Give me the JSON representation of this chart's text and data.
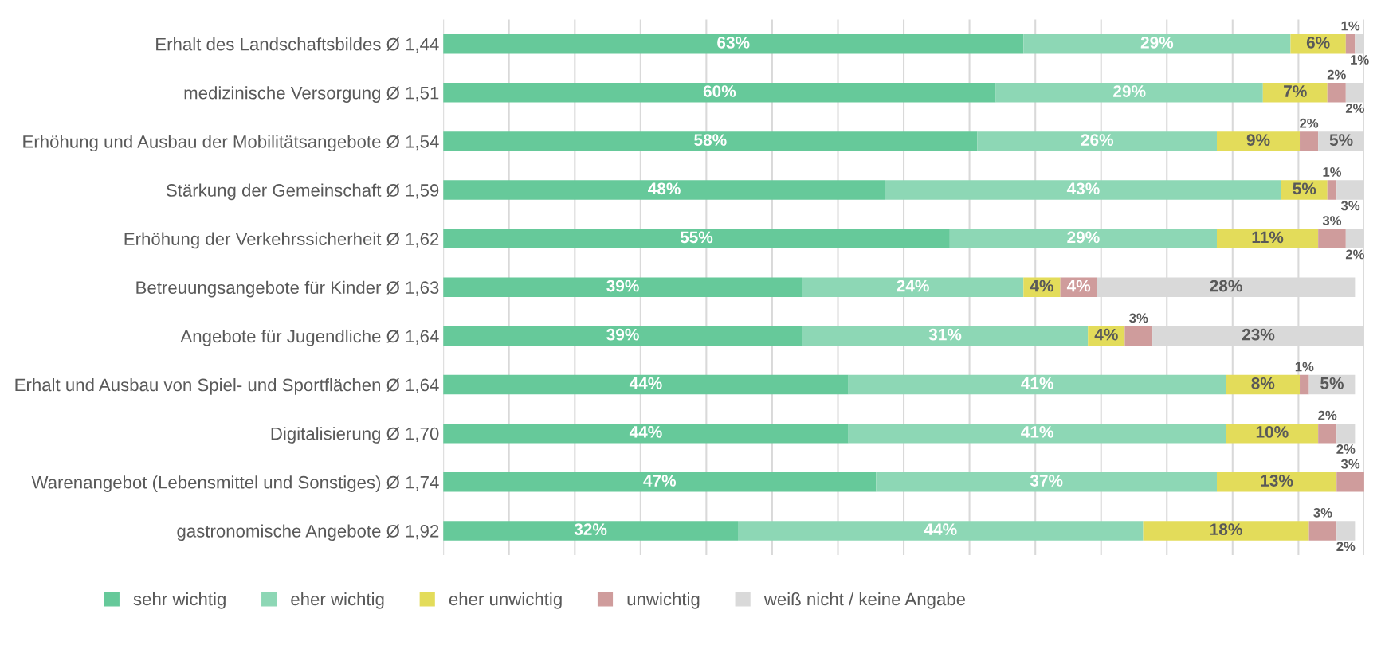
{
  "chart_data": {
    "type": "bar",
    "orientation": "horizontal",
    "stacked": true,
    "categories": [
      "Erhalt des Landschaftsbildes Ø 1,44",
      "medizinische Versorgung Ø 1,51",
      "Erhöhung und Ausbau der Mobilitätsangebote Ø 1,54",
      "Stärkung der Gemeinschaft Ø 1,59",
      "Erhöhung der Verkehrssicherheit Ø 1,62",
      "Betreuungsangebote für Kinder Ø 1,63",
      "Angebote für Jugendliche Ø 1,64",
      "Erhalt und Ausbau von Spiel- und Sportflächen Ø 1,64",
      "Digitalisierung Ø 1,70",
      "Warenangebot (Lebensmittel und Sonstiges) Ø 1,74",
      "gastronomische Angebote Ø 1,92"
    ],
    "series": [
      {
        "name": "sehr wichtig",
        "color": "#66c99a",
        "values": [
          63,
          60,
          58,
          48,
          55,
          39,
          39,
          44,
          44,
          47,
          32
        ],
        "value_labels": [
          "63%",
          "60%",
          "58%",
          "48%",
          "55%",
          "39%",
          "39%",
          "44%",
          "44%",
          "47%",
          "32%"
        ]
      },
      {
        "name": "eher wichtig",
        "color": "#8dd7b5",
        "values": [
          29,
          29,
          26,
          43,
          29,
          24,
          31,
          41,
          41,
          37,
          44
        ],
        "value_labels": [
          "29%",
          "29%",
          "26%",
          "43%",
          "29%",
          "24%",
          "31%",
          "41%",
          "41%",
          "37%",
          "44%"
        ]
      },
      {
        "name": "eher unwichtig",
        "color": "#e3dc5a",
        "values": [
          6,
          7,
          9,
          5,
          11,
          4,
          4,
          8,
          10,
          13,
          18
        ],
        "value_labels": [
          "6%",
          "7%",
          "9%",
          "5%",
          "11%",
          "4%",
          "4%",
          "8%",
          "10%",
          "13%",
          "18%"
        ]
      },
      {
        "name": "unwichtig",
        "color": "#cf9c9c",
        "values": [
          1,
          2,
          2,
          1,
          3,
          4,
          3,
          1,
          2,
          3,
          3
        ],
        "value_labels": [
          "1%",
          "2%",
          "2%",
          "1%",
          "3%",
          "4%",
          "3%",
          "1%",
          "2%",
          "3%",
          "3%"
        ]
      },
      {
        "name": "weiß nicht / keine Angabe",
        "color": "#d9d9d9",
        "values": [
          1,
          2,
          5,
          3,
          2,
          28,
          23,
          5,
          2,
          0,
          2
        ],
        "value_labels": [
          "1%",
          "2%",
          "5%",
          "3%",
          "2%",
          "28%",
          "23%",
          "5%",
          "2%",
          null,
          "2%"
        ]
      }
    ],
    "xlim": [
      0,
      100
    ],
    "xticks": [
      {
        "value": 0,
        "label": null
      },
      {
        "value": 7.14,
        "label": null
      },
      {
        "value": 14.29,
        "label": null
      },
      {
        "value": 21.43,
        "label": null
      },
      {
        "value": 28.57,
        "label": null
      },
      {
        "value": 35.71,
        "label": null
      },
      {
        "value": 42.86,
        "label": null
      },
      {
        "value": 50,
        "label": null
      },
      {
        "value": 57.14,
        "label": null
      },
      {
        "value": 64.29,
        "label": null
      },
      {
        "value": 71.43,
        "label": null
      },
      {
        "value": 78.57,
        "label": null
      },
      {
        "value": 85.71,
        "label": null
      },
      {
        "value": 92.86,
        "label": null
      },
      {
        "value": 100,
        "label": null
      }
    ],
    "tick_labels": "y",
    "grid": "x",
    "legend": "bottom"
  }
}
